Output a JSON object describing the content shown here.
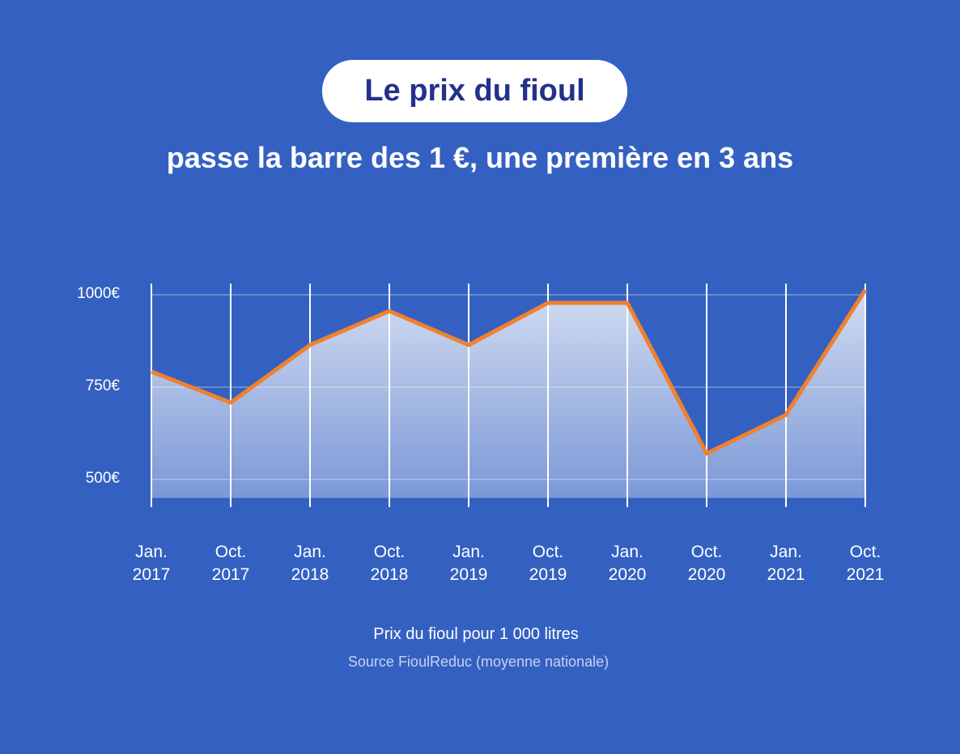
{
  "chart_data": {
    "type": "area",
    "title": "Le prix du fioul",
    "subtitle": "passe la barre des 1 €, une première en 3 ans",
    "caption": "Prix du fioul pour 1 000 litres",
    "source": "Source FioulReduc (moyenne nationale)",
    "categories": [
      "Jan.\n2017",
      "Oct.\n2017",
      "Jan.\n2018",
      "Oct.\n2018",
      "Jan.\n2019",
      "Oct.\n2019",
      "Jan.\n2020",
      "Oct.\n2020",
      "Jan.\n2021",
      "Oct.\n2021"
    ],
    "values": [
      792,
      708,
      864,
      956,
      864,
      978,
      978,
      570,
      675,
      1013
    ],
    "color": "#f0812e",
    "ylim": [
      450,
      1030
    ],
    "yticks": [
      {
        "value": 500,
        "label": "500€"
      },
      {
        "value": 750,
        "label": "750€"
      },
      {
        "value": 1000,
        "label": "1000€"
      }
    ],
    "grid": true
  }
}
